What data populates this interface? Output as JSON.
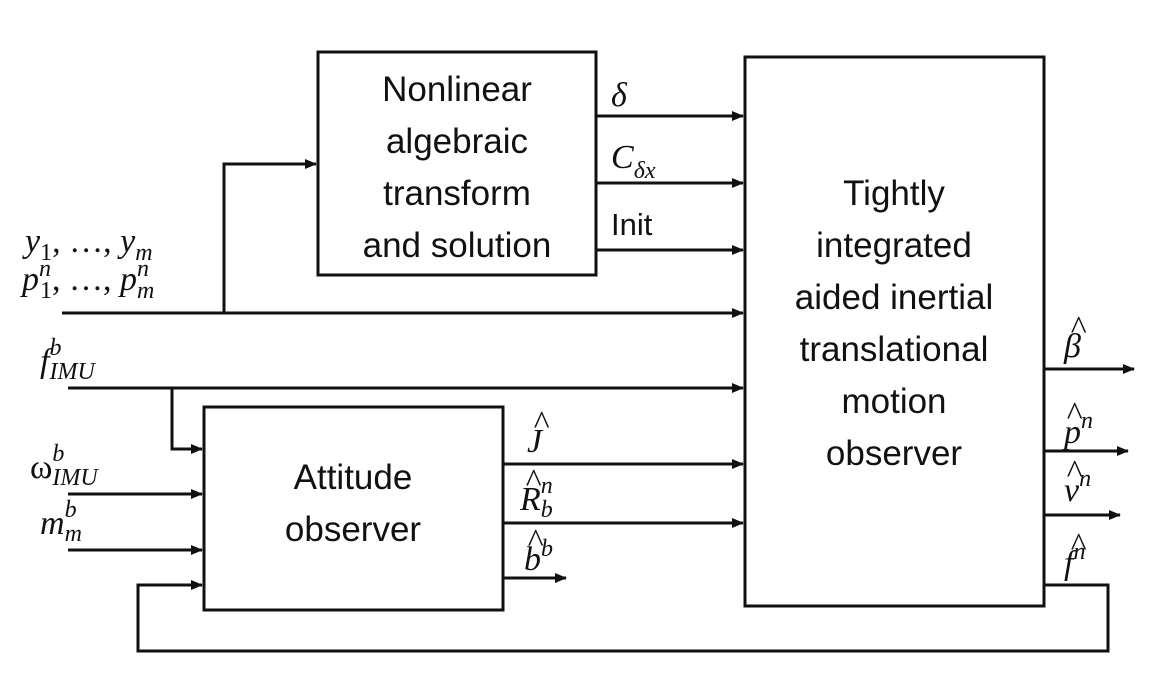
{
  "blocks": {
    "nonlinear": {
      "lines": [
        "Nonlinear",
        "algebraic",
        "transform",
        "and solution"
      ]
    },
    "attitude": {
      "lines": [
        "Attitude",
        "observer"
      ]
    },
    "tight": {
      "lines": [
        "Tightly",
        "integrated",
        "aided inertial",
        "translational",
        "motion",
        "observer"
      ]
    }
  },
  "signals": {
    "delta": {
      "base": "δ"
    },
    "c_delta_x": {
      "base": "C",
      "sub": "δx"
    },
    "init": {
      "text": "Init"
    },
    "y_list": {
      "y1": "y",
      "sub1": "1",
      "sep": ", …, ",
      "ym": "y",
      "subm": "m"
    },
    "p_list": {
      "p1": "p",
      "sup1": "n",
      "sub1": "1",
      "sep": ", …, ",
      "pm": "p",
      "supm": "n",
      "subm": "m"
    },
    "f_imu": {
      "base": "f",
      "sup": "b",
      "sub": "IMU"
    },
    "omega_imu": {
      "base": "ω",
      "sup": "b",
      "sub": "IMU"
    },
    "m_m": {
      "base": "m",
      "sup": "b",
      "sub": "m"
    },
    "j_hat": {
      "base": "J",
      "hat": "^"
    },
    "r_hat": {
      "base": "R",
      "hat": "^",
      "sup": "n",
      "sub": "b"
    },
    "b_hat": {
      "base": "b",
      "hat": "^",
      "sup": "b"
    },
    "beta_hat": {
      "base": "β",
      "hat": "^"
    },
    "p_hat": {
      "base": "p",
      "hat": "^",
      "sup": "n"
    },
    "v_hat": {
      "base": "v",
      "hat": "^",
      "sup": "n"
    },
    "f_hat": {
      "base": "f",
      "hat": "^",
      "sup": "n"
    }
  },
  "colors": {
    "stroke": "#111111",
    "background": "#ffffff"
  }
}
